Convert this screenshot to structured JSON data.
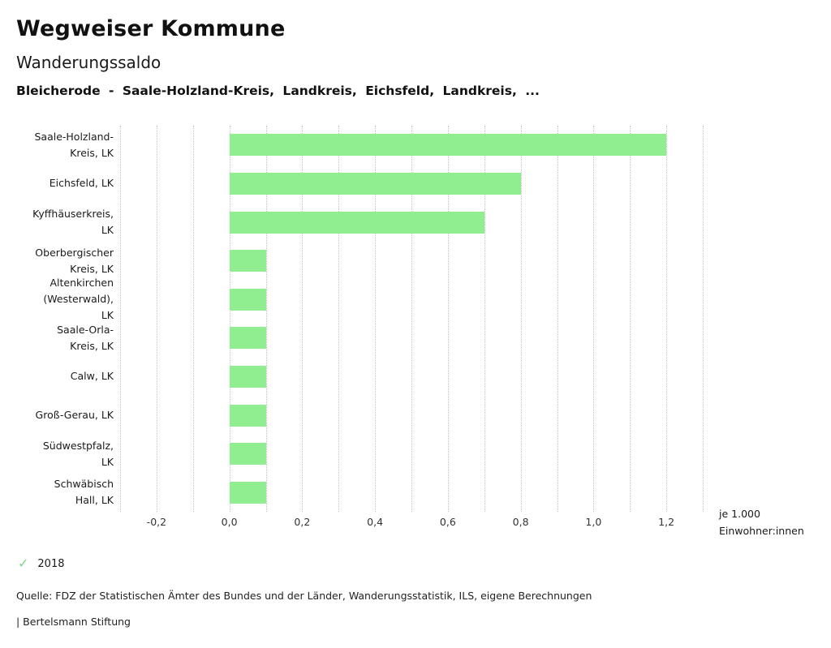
{
  "header": {
    "app_title": "Wegweiser Kommune",
    "subtitle": "Wanderungssaldo",
    "chart_title": "Bleicherode - Saale-Holzland-Kreis, Landkreis, Eichsfeld, Landkreis, ..."
  },
  "chart_data": {
    "type": "bar",
    "orientation": "horizontal",
    "title": "Wanderungssaldo",
    "subtitle": "Bleicherode - Saale-Holzland-Kreis, Landkreis, Eichsfeld, Landkreis, ...",
    "categories": [
      "Saale-Holzland-Kreis, LK",
      "Eichsfeld, LK",
      "Kyffhäuserkreis, LK",
      "Oberbergischer Kreis, LK",
      "Altenkirchen (Westerwald), LK",
      "Saale-Orla-Kreis, LK",
      "Calw, LK",
      "Groß-Gerau, LK",
      "Südwestpfalz, LK",
      "Schwäbisch Hall, LK"
    ],
    "category_lines": [
      [
        "Saale-Holzland-",
        "Kreis, LK"
      ],
      [
        "Eichsfeld, LK"
      ],
      [
        "Kyffhäuserkreis,",
        "LK"
      ],
      [
        "Oberbergischer",
        "Kreis, LK"
      ],
      [
        "Altenkirchen",
        "(Westerwald),",
        "LK"
      ],
      [
        "Saale-Orla-",
        "Kreis, LK"
      ],
      [
        "Calw, LK"
      ],
      [
        "Groß-Gerau, LK"
      ],
      [
        "Südwestpfalz,",
        "LK"
      ],
      [
        "Schwäbisch",
        "Hall, LK"
      ]
    ],
    "values": [
      1.2,
      0.8,
      0.7,
      0.1,
      0.1,
      0.1,
      0.1,
      0.1,
      0.1,
      0.1
    ],
    "xlim": [
      -0.3,
      1.3
    ],
    "x_ticks": [
      -0.2,
      0.0,
      0.2,
      0.4,
      0.6,
      0.8,
      1.0,
      1.2
    ],
    "x_tick_labels": [
      "-0,2",
      "0,0",
      "0,2",
      "0,4",
      "0,6",
      "0,8",
      "1,0",
      "1,2"
    ],
    "gridline_step": 0.1,
    "grid": "dotted-vertical",
    "xlabel": "je 1.000 Einwohner:innen",
    "xlabel_lines": [
      "je 1.000",
      "Einwohner:innen"
    ],
    "bar_color": "#90ee90",
    "legend": {
      "position": "bottom-left",
      "items": [
        {
          "label": "2018",
          "icon": "check-icon",
          "glyph": "✓",
          "color": "#85d685"
        }
      ]
    }
  },
  "footer": {
    "source": "Quelle: FDZ der Statistischen Ämter des Bundes und der Länder, Wanderungsstatistik, ILS, eigene Berechnungen",
    "branding": "| Bertelsmann Stiftung"
  }
}
